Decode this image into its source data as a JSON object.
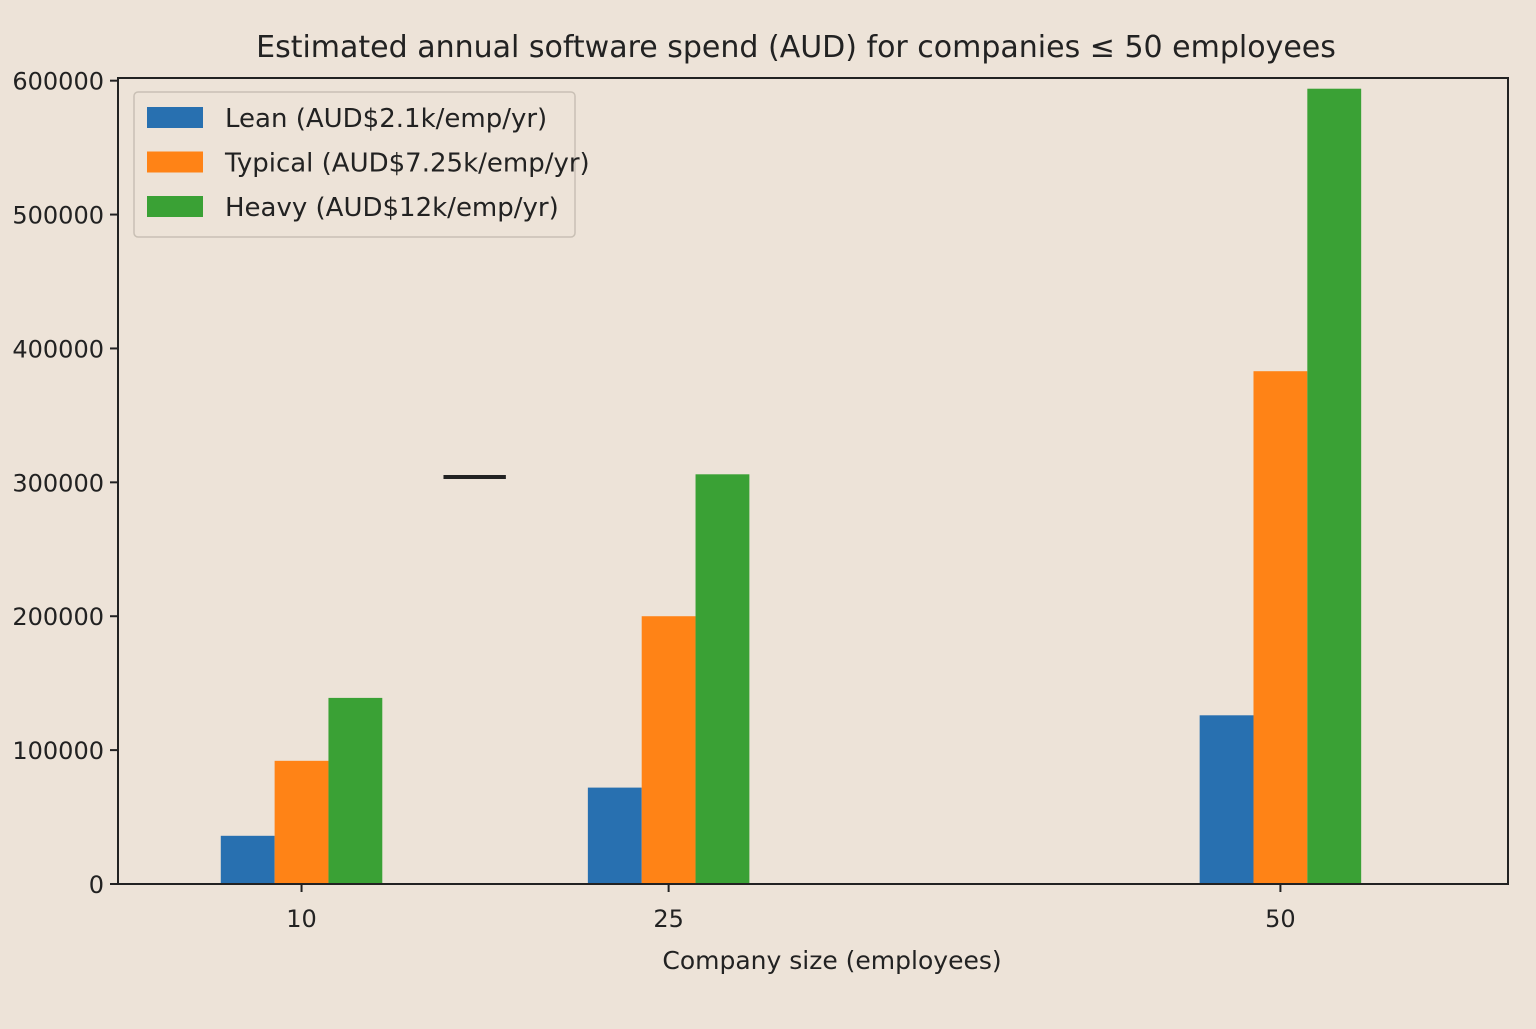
{
  "chart_data": {
    "type": "bar",
    "title": "Estimated annual software spend (AUD) for companies ≤ 50 employees",
    "xlabel": "Company size (employees)",
    "ylabel": "",
    "categories": [
      "10",
      "25",
      "50"
    ],
    "series": [
      {
        "name": "Lean (AUD$2.1k/emp/yr)",
        "color": "#2870b0",
        "values": [
          36000,
          72000,
          126000
        ]
      },
      {
        "name": "Typical (AUD$7.25k/emp/yr)",
        "color": "#ff8316",
        "values": [
          92000,
          200000,
          383000
        ]
      },
      {
        "name": "Heavy (AUD$12k/emp/yr)",
        "color": "#3aa135",
        "values": [
          139000,
          306000,
          594000
        ]
      }
    ],
    "yticks": [
      0,
      100000,
      200000,
      300000,
      400000,
      500000,
      600000
    ],
    "ylim": [
      0,
      602000
    ],
    "grid": false,
    "legend_position": "top-left",
    "annotation_line": {
      "x_start": 15.8,
      "x_end": 18.35,
      "y": 304000,
      "color": "#222222"
    }
  }
}
